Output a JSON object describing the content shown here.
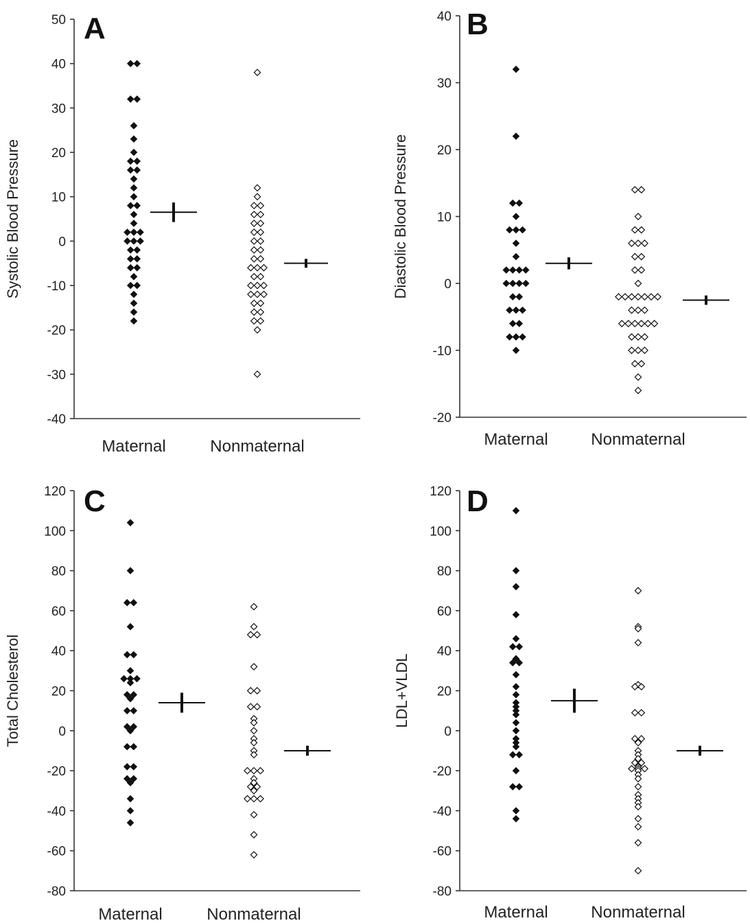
{
  "chart_data": [
    {
      "type": "scatter",
      "panel": "A",
      "ylabel": "Systolic Blood Pressure",
      "xlabel": "",
      "categories": [
        "Maternal",
        "Nonmaternal"
      ],
      "ylim": [
        -40,
        50
      ],
      "yticks": [
        -40,
        -30,
        -20,
        -10,
        0,
        10,
        20,
        30,
        40,
        50
      ],
      "grid": false,
      "series": [
        {
          "marker": "filled-diamond",
          "values": [
            40,
            40,
            32,
            32,
            26,
            23,
            20,
            18,
            18,
            16,
            16,
            14,
            12,
            10,
            8,
            8,
            6,
            4,
            2,
            2,
            2,
            0,
            0,
            0,
            -2,
            -2,
            -4,
            -4,
            -6,
            -6,
            -8,
            -10,
            -10,
            -12,
            -14,
            -16,
            -18
          ],
          "mean": 6.5,
          "sem": 2.2
        },
        {
          "marker": "open-diamond",
          "values": [
            38,
            12,
            10,
            8,
            8,
            6,
            6,
            4,
            4,
            2,
            2,
            0,
            0,
            -2,
            -2,
            -4,
            -4,
            -6,
            -6,
            -6,
            -8,
            -8,
            -10,
            -10,
            -10,
            -12,
            -12,
            -12,
            -14,
            -14,
            -16,
            -16,
            -18,
            -18,
            -20,
            -30
          ],
          "mean": -5,
          "sem": 1
        }
      ]
    },
    {
      "type": "scatter",
      "panel": "B",
      "ylabel": "Diastolic Blood Pressure",
      "xlabel": "",
      "categories": [
        "Maternal",
        "Nonmaternal"
      ],
      "ylim": [
        -20,
        40
      ],
      "yticks": [
        -20,
        -10,
        0,
        10,
        20,
        30,
        40
      ],
      "grid": false,
      "series": [
        {
          "marker": "filled-diamond",
          "values": [
            32,
            22,
            12,
            12,
            10,
            8,
            8,
            8,
            6,
            4,
            2,
            2,
            2,
            2,
            0,
            0,
            0,
            0,
            -2,
            -2,
            -4,
            -4,
            -4,
            -6,
            -6,
            -8,
            -8,
            -8,
            -10
          ],
          "mean": 3,
          "sem": 0.9
        },
        {
          "marker": "open-diamond",
          "values": [
            14,
            14,
            10,
            8,
            8,
            6,
            6,
            6,
            4,
            4,
            2,
            2,
            0,
            -2,
            -2,
            -2,
            -2,
            -2,
            -2,
            -2,
            -4,
            -4,
            -4,
            -6,
            -6,
            -6,
            -6,
            -6,
            -6,
            -8,
            -8,
            -8,
            -10,
            -10,
            -10,
            -12,
            -12,
            -14,
            -16
          ],
          "mean": -2.5,
          "sem": 0.7
        }
      ]
    },
    {
      "type": "scatter",
      "panel": "C",
      "ylabel": "Total Cholesterol",
      "xlabel": "",
      "categories": [
        "Maternal",
        "Nonmaternal"
      ],
      "ylim": [
        -80,
        120
      ],
      "yticks": [
        -80,
        -60,
        -40,
        -20,
        0,
        20,
        40,
        60,
        80,
        100,
        120
      ],
      "grid": false,
      "series": [
        {
          "marker": "filled-diamond",
          "values": [
            104,
            80,
            64,
            64,
            52,
            38,
            38,
            30,
            26,
            26,
            26,
            24,
            18,
            18,
            16,
            10,
            10,
            2,
            2,
            0,
            -8,
            -8,
            -18,
            -18,
            -24,
            -24,
            -26,
            -34,
            -40,
            -46
          ],
          "mean": 14,
          "sem": 5
        },
        {
          "marker": "open-diamond",
          "values": [
            62,
            52,
            48,
            48,
            32,
            20,
            20,
            12,
            12,
            6,
            4,
            0,
            -4,
            -6,
            -10,
            -12,
            -20,
            -20,
            -20,
            -24,
            -26,
            -28,
            -28,
            -30,
            -34,
            -34,
            -34,
            -42,
            -52,
            -62
          ],
          "mean": -10,
          "sem": 2.5
        }
      ]
    },
    {
      "type": "scatter",
      "panel": "D",
      "ylabel": "LDL+VLDL",
      "xlabel": "",
      "categories": [
        "Maternal",
        "Nonmaternal"
      ],
      "ylim": [
        -80,
        120
      ],
      "yticks": [
        -80,
        -60,
        -40,
        -20,
        0,
        20,
        40,
        60,
        80,
        100,
        120
      ],
      "grid": false,
      "series": [
        {
          "marker": "filled-diamond",
          "values": [
            110,
            80,
            72,
            58,
            46,
            42,
            42,
            36,
            34,
            34,
            28,
            22,
            18,
            14,
            12,
            10,
            8,
            4,
            0,
            -4,
            -6,
            -8,
            -12,
            -12,
            -20,
            -28,
            -28,
            -40,
            -44
          ],
          "mean": 15,
          "sem": 6
        },
        {
          "marker": "open-diamond",
          "values": [
            70,
            52,
            51,
            44,
            23,
            22,
            22,
            9,
            9,
            -4,
            -4,
            -6,
            -10,
            -12,
            -14,
            -16,
            -16,
            -18,
            -19,
            -19,
            -19,
            -20,
            -22,
            -24,
            -28,
            -32,
            -34,
            -36,
            -38,
            -44,
            -48,
            -56,
            -70
          ],
          "mean": -10,
          "sem": 2.5
        }
      ]
    }
  ]
}
